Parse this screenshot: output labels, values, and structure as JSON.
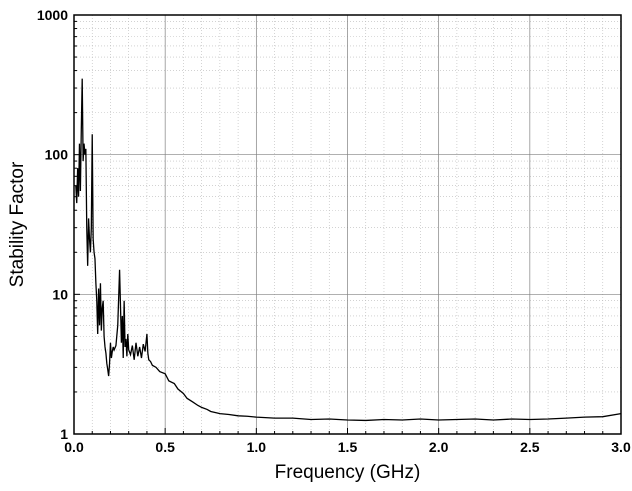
{
  "chart_data": {
    "type": "line",
    "title": "",
    "xlabel": "Frequency (GHz)",
    "ylabel": "Stability Factor",
    "xlim": [
      0.0,
      3.0
    ],
    "ylim": [
      1,
      1000
    ],
    "yscale": "log",
    "grid": true,
    "legend": "none",
    "x_ticks": [
      "0.0",
      "0.5",
      "1.0",
      "1.5",
      "2.0",
      "2.5",
      "3.0"
    ],
    "y_ticks": [
      "1",
      "10",
      "100",
      "1000"
    ],
    "line_color": "#000000",
    "series": [
      {
        "x": [
          0.01,
          0.015,
          0.02,
          0.025,
          0.03,
          0.035,
          0.04,
          0.045,
          0.05,
          0.055,
          0.06,
          0.065,
          0.07,
          0.075,
          0.08,
          0.085,
          0.09,
          0.095,
          0.1,
          0.105,
          0.11,
          0.115,
          0.12,
          0.125,
          0.13,
          0.135,
          0.14,
          0.145,
          0.15,
          0.155,
          0.16,
          0.165,
          0.17,
          0.175,
          0.18,
          0.185,
          0.19,
          0.195,
          0.2,
          0.205,
          0.21,
          0.215,
          0.22,
          0.23,
          0.24,
          0.25,
          0.26,
          0.265,
          0.27,
          0.275,
          0.28,
          0.285,
          0.29,
          0.295,
          0.3,
          0.31,
          0.32,
          0.33,
          0.34,
          0.35,
          0.36,
          0.37,
          0.38,
          0.39,
          0.4,
          0.405,
          0.41,
          0.42,
          0.43,
          0.45,
          0.47,
          0.5,
          0.52,
          0.55,
          0.57,
          0.6,
          0.62,
          0.65,
          0.68,
          0.7,
          0.73,
          0.75,
          0.78,
          0.8,
          0.85,
          0.9,
          0.95,
          1.0,
          1.1,
          1.2,
          1.3,
          1.4,
          1.5,
          1.6,
          1.7,
          1.8,
          1.9,
          2.0,
          2.1,
          2.2,
          2.3,
          2.4,
          2.5,
          2.6,
          2.7,
          2.8,
          2.9,
          3.0
        ],
        "y": [
          60,
          45,
          80,
          50,
          120,
          55,
          150,
          350,
          90,
          120,
          100,
          110,
          30,
          16,
          35,
          25,
          20,
          30,
          140,
          25,
          20,
          18,
          12,
          9,
          5.2,
          11,
          6,
          12,
          5.5,
          8,
          9,
          5,
          4.2,
          3.8,
          3.2,
          2.9,
          2.6,
          3.2,
          4.5,
          3.5,
          3.9,
          4.2,
          4.0,
          4.3,
          6,
          15,
          4.5,
          7,
          3.5,
          9,
          4.2,
          4.8,
          3.6,
          5.2,
          4.0,
          3.7,
          4.3,
          3.4,
          4.5,
          3.6,
          4.2,
          3.5,
          4.4,
          3.9,
          5.2,
          3.8,
          3.4,
          3.3,
          3.1,
          3.0,
          2.8,
          2.7,
          2.4,
          2.3,
          2.1,
          1.95,
          1.8,
          1.7,
          1.6,
          1.55,
          1.5,
          1.45,
          1.42,
          1.4,
          1.38,
          1.35,
          1.34,
          1.32,
          1.3,
          1.3,
          1.27,
          1.28,
          1.26,
          1.25,
          1.27,
          1.26,
          1.28,
          1.26,
          1.27,
          1.28,
          1.26,
          1.28,
          1.27,
          1.28,
          1.3,
          1.32,
          1.33,
          1.4
        ]
      }
    ]
  }
}
